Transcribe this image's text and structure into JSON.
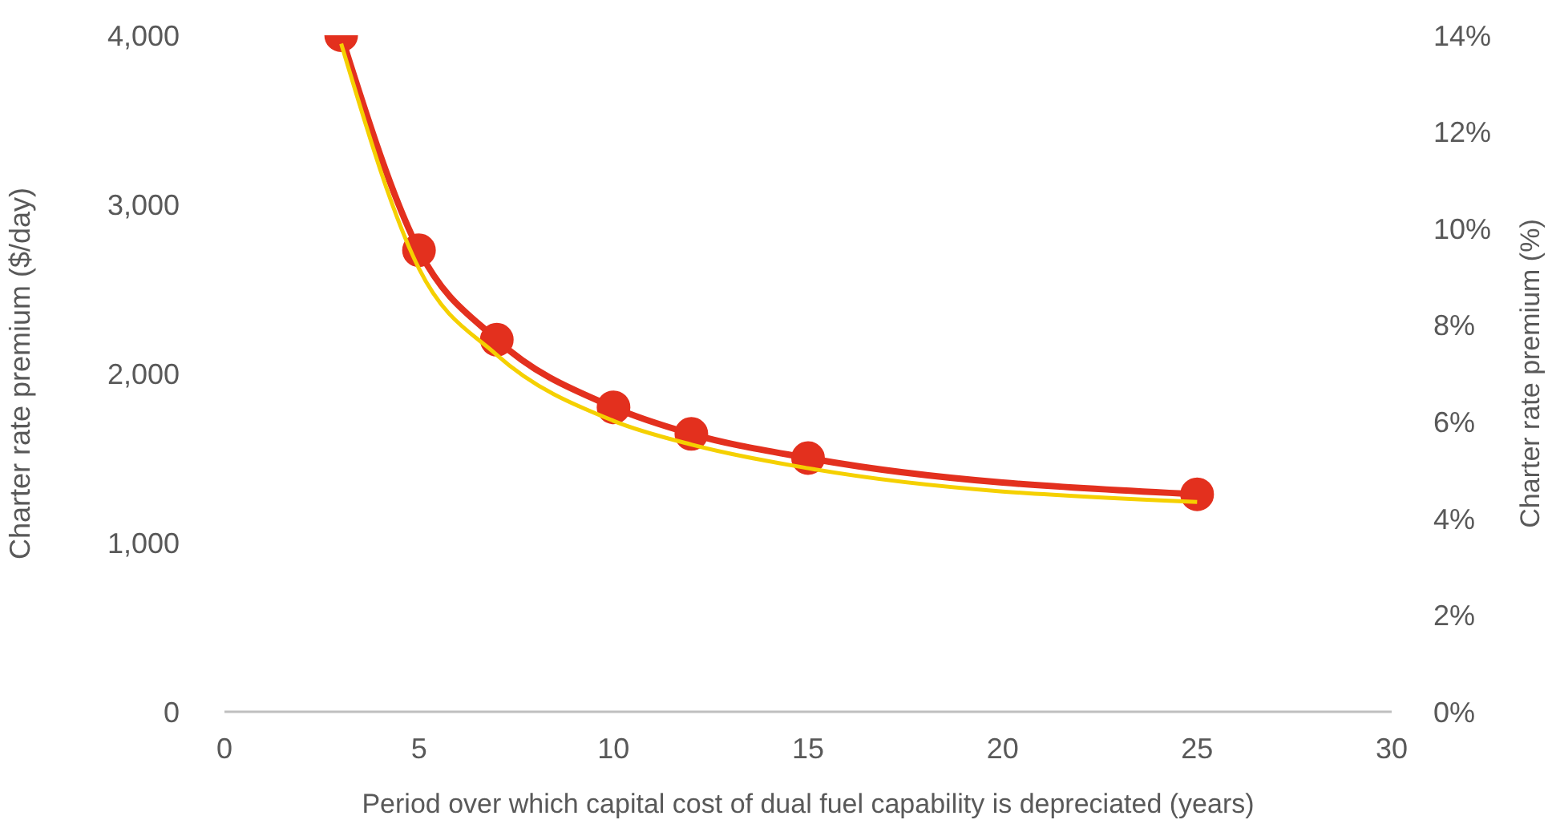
{
  "chart_data": {
    "type": "line",
    "xlabel": "Period over which capital cost of dual fuel capability is depreciated (years)",
    "ylabel": "Charter rate premium ($/day)",
    "y2label": "Charter rate premium (%)",
    "x": [
      3,
      5,
      7,
      10,
      12,
      15,
      25
    ],
    "series": [
      {
        "color": "#f5d000",
        "values": [
          3950,
          2620,
          2110,
          1720,
          1580,
          1440,
          1240
        ],
        "marker": "none"
      },
      {
        "color": "#e3301e",
        "values": [
          14.0,
          9.55,
          7.7,
          6.3,
          5.75,
          5.25,
          4.5
        ],
        "axis": "y2",
        "marker": "circle"
      }
    ],
    "xlim": [
      0,
      30
    ],
    "xticks": [
      0,
      5,
      10,
      15,
      20,
      25,
      30
    ],
    "ylim": [
      0,
      4000
    ],
    "yticks": [
      {
        "value": 0,
        "label": "0"
      },
      {
        "value": 1000,
        "label": "1,000"
      },
      {
        "value": 2000,
        "label": "2,000"
      },
      {
        "value": 3000,
        "label": "3,000"
      },
      {
        "value": 4000,
        "label": "4,000"
      }
    ],
    "y2lim": [
      0,
      14
    ],
    "y2ticks": [
      {
        "value": 0,
        "label": "0%"
      },
      {
        "value": 2,
        "label": "2%"
      },
      {
        "value": 4,
        "label": "4%"
      },
      {
        "value": 6,
        "label": "6%"
      },
      {
        "value": 8,
        "label": "8%"
      },
      {
        "value": 10,
        "label": "10%"
      },
      {
        "value": 12,
        "label": "12%"
      },
      {
        "value": 14,
        "label": "14%"
      }
    ],
    "grid": false,
    "legend": false,
    "line_style": "solid"
  }
}
